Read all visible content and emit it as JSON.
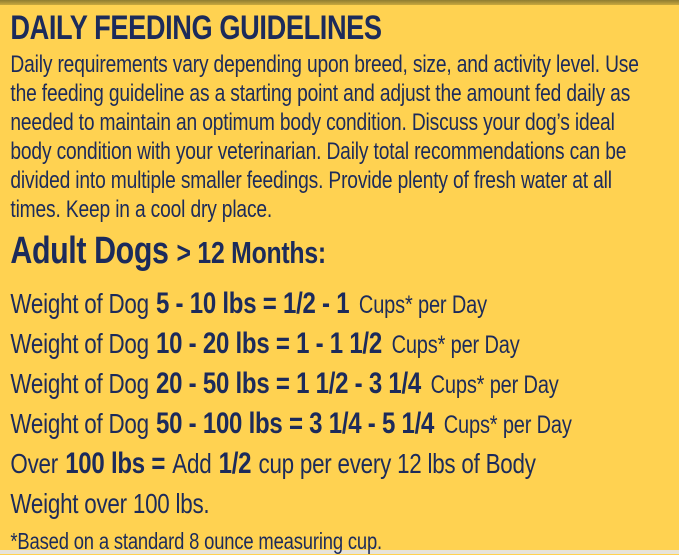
{
  "page": {
    "background_color": "#FFD251",
    "text_color": "#1C2B5B",
    "top_strip_color": "#A8923A",
    "bottom_strip_color": "#E7E4DA"
  },
  "title": "DAILY FEEDING GUIDELINES",
  "intro": {
    "lines": [
      "Daily requirements vary depending upon breed, size, and activity level. Use",
      "the feeding guideline as a starting point and adjust the amount fed daily as",
      "needed to maintain an optimum body condition. Discuss your dog’s ideal",
      "body condition with your veterinarian. Daily total recommendations can be",
      "divided into multiple smaller feedings. Provide plenty of fresh water at all",
      "times. Keep in a cool dry place."
    ]
  },
  "section": {
    "heading_main": "Adult Dogs",
    "heading_sub": "> 12 Months:"
  },
  "rows": [
    {
      "prefix": "Weight of Dog",
      "bold": "5 - 10 lbs = 1/2 - 1",
      "suffix": "Cups* per Day"
    },
    {
      "prefix": "Weight of Dog",
      "bold": "10 - 20 lbs = 1 - 1 1/2",
      "suffix": "Cups* per Day"
    },
    {
      "prefix": "Weight of Dog",
      "bold": "20 - 50 lbs = 1 1/2 - 3 1/4",
      "suffix": "Cups* per Day"
    },
    {
      "prefix": "Weight of Dog",
      "bold": "50 - 100 lbs = 3 1/4 - 5 1/4",
      "suffix": "Cups* per Day"
    }
  ],
  "over_row": {
    "s1": "Over",
    "s2": "100 lbs =",
    "s3": "Add",
    "s4": "1/2",
    "s5": "cup per every 12 lbs of Body",
    "line2": "Weight over 100 lbs."
  },
  "footnote": "*Based on a standard 8 ounce measuring cup."
}
